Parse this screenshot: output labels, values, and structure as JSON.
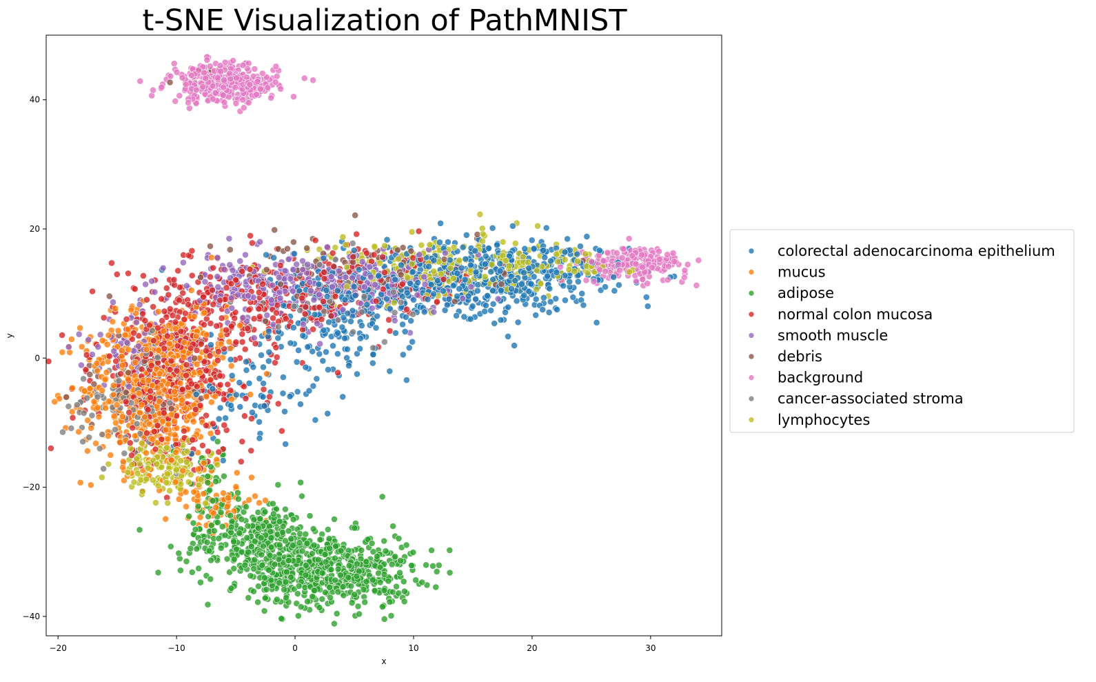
{
  "chart_data": {
    "type": "scatter",
    "title": "t-SNE Visualization of PathMNIST",
    "xlabel": "x",
    "ylabel": "y",
    "xlim": [
      -21,
      36
    ],
    "ylim": [
      -43,
      50
    ],
    "xticks": [
      -20,
      -10,
      0,
      10,
      20,
      30
    ],
    "yticks": [
      -40,
      -20,
      0,
      20,
      40
    ],
    "grid": false,
    "legend_position": "outside right",
    "series": [
      {
        "name": "colorectal adenocarcinoma epithelium",
        "color": "#1f77b4",
        "clusters": [
          {
            "cx": 13,
            "cy": 12,
            "sx": 6,
            "sy": 3.5,
            "n": 420
          },
          {
            "cx": 4,
            "cy": 5,
            "sx": 3,
            "sy": 4,
            "n": 150
          },
          {
            "cx": 20,
            "cy": 13,
            "sx": 4,
            "sy": 2.5,
            "n": 160
          },
          {
            "cx": -4,
            "cy": -6,
            "sx": 3,
            "sy": 4,
            "n": 70
          }
        ]
      },
      {
        "name": "mucus",
        "color": "#ff7f0e",
        "clusters": [
          {
            "cx": -12,
            "cy": -5,
            "sx": 3,
            "sy": 6,
            "n": 520
          },
          {
            "cx": -7,
            "cy": -22,
            "sx": 2,
            "sy": 2.5,
            "n": 70
          },
          {
            "cx": -10,
            "cy": 3,
            "sx": 3,
            "sy": 3,
            "n": 100
          }
        ]
      },
      {
        "name": "adipose",
        "color": "#2ca02c",
        "clusters": [
          {
            "cx": 3,
            "cy": -33,
            "sx": 3.5,
            "sy": 2.8,
            "n": 560
          },
          {
            "cx": -3.5,
            "cy": -28,
            "sx": 3,
            "sy": 3,
            "n": 320
          },
          {
            "cx": -7,
            "cy": -20,
            "sx": 1.5,
            "sy": 3.5,
            "n": 40
          }
        ]
      },
      {
        "name": "normal colon mucosa",
        "color": "#d62728",
        "clusters": [
          {
            "cx": -10,
            "cy": -2,
            "sx": 3.5,
            "sy": 7,
            "n": 480
          },
          {
            "cx": -3,
            "cy": 8,
            "sx": 4,
            "sy": 3,
            "n": 180
          },
          {
            "cx": 6,
            "cy": 12,
            "sx": 5,
            "sy": 3,
            "n": 120
          }
        ]
      },
      {
        "name": "smooth muscle",
        "color": "#9467bd",
        "clusters": [
          {
            "cx": -2,
            "cy": 11,
            "sx": 4,
            "sy": 2.5,
            "n": 220
          },
          {
            "cx": 7,
            "cy": 12,
            "sx": 4,
            "sy": 2.5,
            "n": 140
          },
          {
            "cx": -13,
            "cy": 1,
            "sx": 2.5,
            "sy": 3,
            "n": 70
          }
        ]
      },
      {
        "name": "debris",
        "color": "#8c564b",
        "clusters": [
          {
            "cx": 6,
            "cy": 14,
            "sx": 6,
            "sy": 3,
            "n": 70
          },
          {
            "cx": -13,
            "cy": -4,
            "sx": 2.5,
            "sy": 4,
            "n": 40
          },
          {
            "cx": -8,
            "cy": 44,
            "sx": 2,
            "sy": 0.8,
            "n": 6
          }
        ]
      },
      {
        "name": "background",
        "color": "#e377c2",
        "clusters": [
          {
            "cx": -6,
            "cy": 42.5,
            "sx": 2.3,
            "sy": 1.5,
            "n": 330
          },
          {
            "cx": 28.5,
            "cy": 14.5,
            "sx": 2.3,
            "sy": 1.3,
            "n": 200
          }
        ]
      },
      {
        "name": "cancer-associated stroma",
        "color": "#7f7f7f",
        "clusters": [
          {
            "cx": -14,
            "cy": -6,
            "sx": 2.5,
            "sy": 4,
            "n": 110
          },
          {
            "cx": 4,
            "cy": 10,
            "sx": 4,
            "sy": 3,
            "n": 50
          }
        ]
      },
      {
        "name": "lymphocytes",
        "color": "#bcbd22",
        "clusters": [
          {
            "cx": -11,
            "cy": -17,
            "sx": 1.8,
            "sy": 2,
            "n": 160
          },
          {
            "cx": 12,
            "cy": 14,
            "sx": 5,
            "sy": 2.5,
            "n": 200
          },
          {
            "cx": 23,
            "cy": 14.5,
            "sx": 3,
            "sy": 1.5,
            "n": 70
          }
        ]
      }
    ]
  }
}
